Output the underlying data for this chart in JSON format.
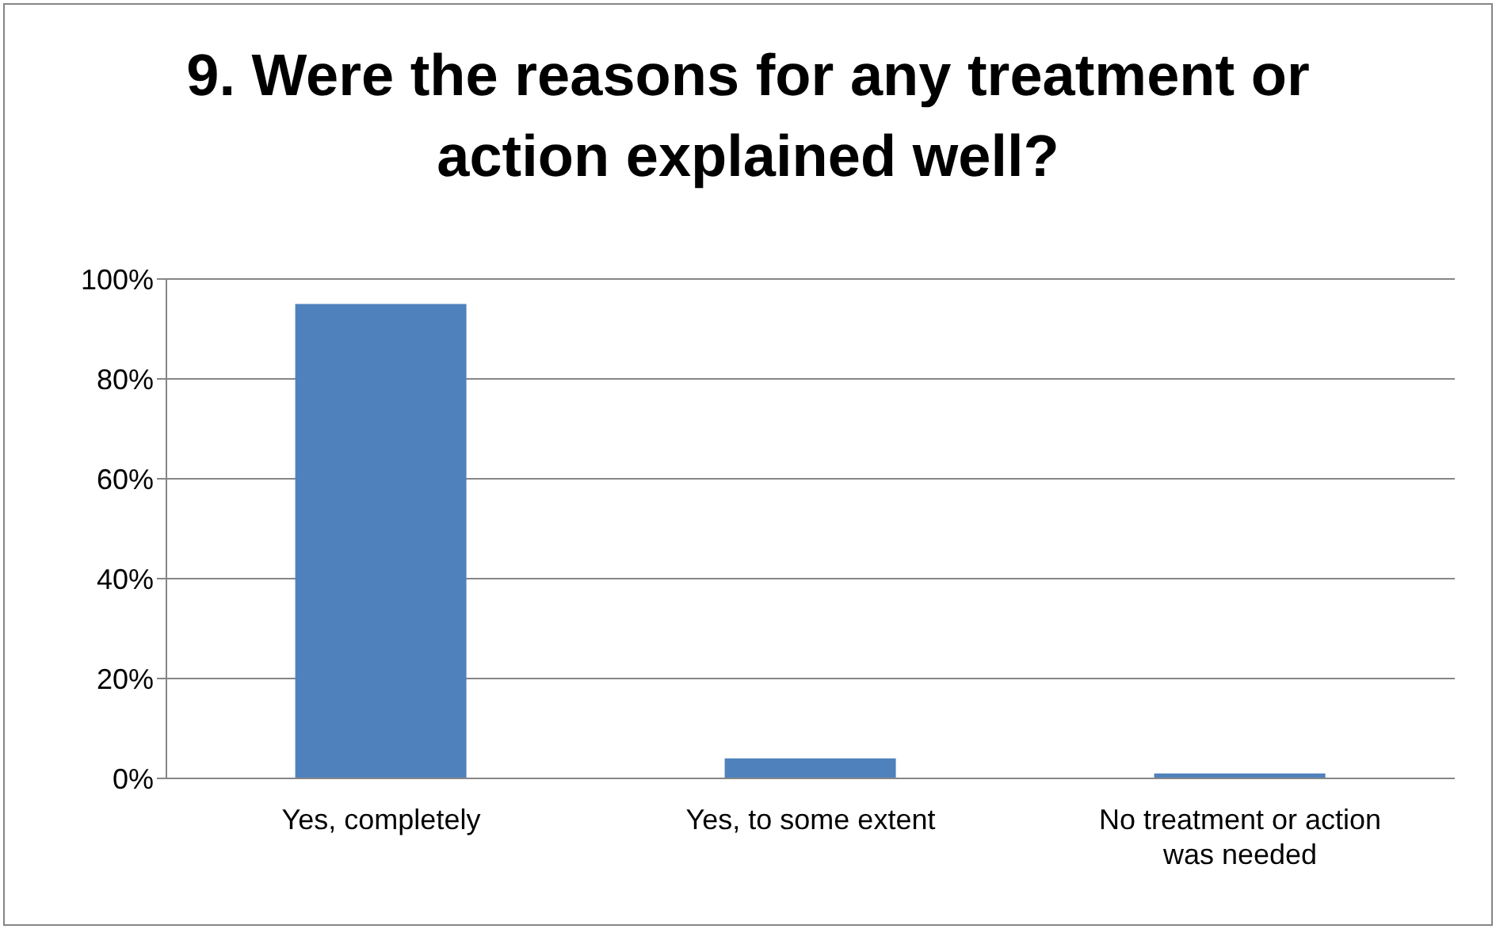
{
  "chart_data": {
    "type": "bar",
    "title": "9. Were the reasons for any treatment or action explained well?",
    "categories": [
      "Yes, completely",
      "Yes, to some extent",
      "No treatment or action was needed"
    ],
    "values": [
      95,
      4,
      1
    ],
    "color": "#4f81bd",
    "ylim": [
      0,
      100
    ],
    "yticks": [
      {
        "value": 0,
        "label": "0%"
      },
      {
        "value": 20,
        "label": "20%"
      },
      {
        "value": 40,
        "label": "40%"
      },
      {
        "value": 60,
        "label": "60%"
      },
      {
        "value": 80,
        "label": "80%"
      },
      {
        "value": 100,
        "label": "100%"
      }
    ],
    "grid": "y",
    "legend": false
  }
}
